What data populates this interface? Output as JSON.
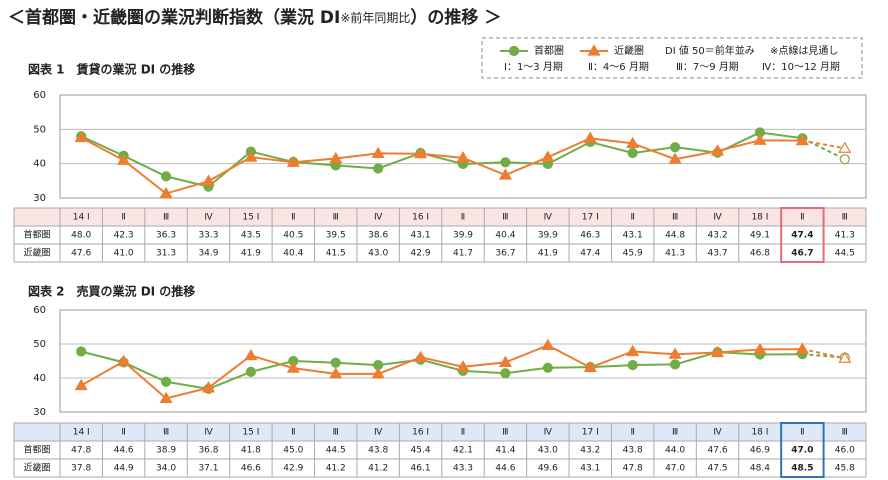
{
  "header": {
    "title_parts": [
      "＜首都圏・近畿圏の業況判断指数（業況 DI",
      "※前年同期比",
      "）の推移 ＞"
    ],
    "legend_notes": [
      "DI 値 50＝前年並み",
      "※点線は見通し"
    ],
    "period_notes": [
      "Ⅰ：1～3 月期",
      "Ⅱ：4～6 月期",
      "Ⅲ：7～9 月期",
      "Ⅳ：10～12 月期"
    ]
  },
  "chart_data": [
    {
      "type": "line",
      "title": "図表 1　賃貸の業況 DI の推移",
      "categories": [
        "14 Ⅰ",
        "Ⅱ",
        "Ⅲ",
        "Ⅳ",
        "15 Ⅰ",
        "Ⅱ",
        "Ⅲ",
        "Ⅳ",
        "16 Ⅰ",
        "Ⅱ",
        "Ⅲ",
        "Ⅳ",
        "17 Ⅰ",
        "Ⅱ",
        "Ⅲ",
        "Ⅳ",
        "18 Ⅰ",
        "Ⅱ",
        "Ⅲ"
      ],
      "series": [
        {
          "name": "首都圏",
          "color": "#70ad47",
          "marker": "circle",
          "values": [
            48.0,
            42.3,
            36.3,
            33.3,
            43.5,
            40.5,
            39.5,
            38.6,
            43.1,
            39.9,
            40.4,
            39.9,
            46.3,
            43.1,
            44.8,
            43.2,
            49.1,
            47.4,
            41.3
          ],
          "value_labels": [
            "48.0",
            "42.3",
            "36.3",
            "33.3",
            "43.5",
            "40.5",
            "39.5",
            "38.6",
            "43.1",
            "39.9",
            "40.4",
            "39.9",
            "46.3",
            "43.1",
            "44.8",
            "43.2",
            "49.1",
            "47.4",
            "41.3"
          ]
        },
        {
          "name": "近畿圏",
          "color": "#ed7d31",
          "marker": "triangle",
          "values": [
            47.6,
            41.0,
            31.3,
            34.9,
            41.9,
            40.4,
            41.5,
            43.0,
            42.9,
            41.7,
            36.7,
            41.9,
            47.4,
            45.9,
            41.3,
            43.7,
            46.8,
            46.7,
            44.5
          ],
          "value_labels": [
            "47.6",
            "41.0",
            "31.3",
            "34.9",
            "41.9",
            "40.4",
            "41.5",
            "43.0",
            "42.9",
            "41.7",
            "36.7",
            "41.9",
            "47.4",
            "45.9",
            "41.3",
            "43.7",
            "46.8",
            "46.7",
            "44.5"
          ]
        }
      ],
      "ylim": [
        30,
        60
      ],
      "yticks": [
        30,
        40,
        50,
        60
      ],
      "grid": true,
      "forecast_last": true,
      "header_color": "#fbe4e4",
      "highlight_color": "#e36c7a"
    },
    {
      "type": "line",
      "title": "図表 2　売買の業況 DI の推移",
      "categories": [
        "14 Ⅰ",
        "Ⅱ",
        "Ⅲ",
        "Ⅳ",
        "15 Ⅰ",
        "Ⅱ",
        "Ⅲ",
        "Ⅳ",
        "16 Ⅰ",
        "Ⅱ",
        "Ⅲ",
        "Ⅳ",
        "17 Ⅰ",
        "Ⅱ",
        "Ⅲ",
        "Ⅳ",
        "18 Ⅰ",
        "Ⅱ",
        "Ⅲ"
      ],
      "series": [
        {
          "name": "首都圏",
          "color": "#70ad47",
          "marker": "circle",
          "values": [
            47.8,
            44.6,
            38.9,
            36.8,
            41.8,
            45.0,
            44.5,
            43.8,
            45.4,
            42.1,
            41.4,
            43.0,
            43.2,
            43.8,
            44.0,
            47.6,
            46.9,
            47.0,
            46.0
          ],
          "value_labels": [
            "47.8",
            "44.6",
            "38.9",
            "36.8",
            "41.8",
            "45.0",
            "44.5",
            "43.8",
            "45.4",
            "42.1",
            "41.4",
            "43.0",
            "43.2",
            "43.8",
            "44.0",
            "47.6",
            "46.9",
            "47.0",
            "46.0"
          ]
        },
        {
          "name": "近畿圏",
          "color": "#ed7d31",
          "marker": "triangle",
          "values": [
            37.8,
            44.9,
            34.0,
            37.1,
            46.6,
            42.9,
            41.2,
            41.2,
            46.1,
            43.3,
            44.6,
            49.6,
            43.1,
            47.8,
            47.0,
            47.5,
            48.4,
            48.5,
            45.8
          ],
          "value_labels": [
            "37.8",
            "44.9",
            "34.0",
            "37.1",
            "46.6",
            "42.9",
            "41.2",
            "41.2",
            "46.1",
            "43.3",
            "44.6",
            "49.6",
            "43.1",
            "47.8",
            "47.0",
            "47.5",
            "48.4",
            "48.5",
            "45.8"
          ]
        }
      ],
      "ylim": [
        30,
        60
      ],
      "yticks": [
        30,
        40,
        50,
        60
      ],
      "grid": true,
      "forecast_last": true,
      "header_color": "#dde9f6",
      "highlight_color": "#2e75b6"
    }
  ]
}
